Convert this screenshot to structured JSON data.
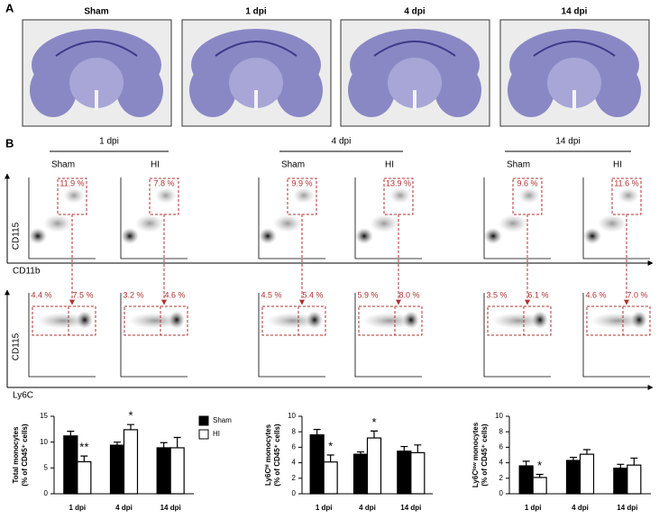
{
  "panel_a": {
    "label": "A",
    "images": [
      "Sham",
      "1 dpi",
      "4 dpi",
      "14 dpi"
    ]
  },
  "panel_b": {
    "label": "B",
    "y_axis_label": "CD115",
    "top_x_axis_label": "CD11b",
    "bottom_x_axis_label": "Ly6C",
    "groups": [
      {
        "title": "1 dpi",
        "plots": [
          {
            "name": "Sham",
            "gate": "11.9 %",
            "left_gate": "4.4 %",
            "right_gate": "7.5 %"
          },
          {
            "name": "HI",
            "gate": "7.8 %",
            "left_gate": "3.2 %",
            "right_gate": "4.6 %"
          }
        ]
      },
      {
        "title": "4 dpi",
        "plots": [
          {
            "name": "Sham",
            "gate": "9.9 %",
            "left_gate": "4.5 %",
            "right_gate": "5.4 %"
          },
          {
            "name": "HI",
            "gate": "13.9 %",
            "left_gate": "5.9 %",
            "right_gate": "8.0 %"
          }
        ]
      },
      {
        "title": "14 dpi",
        "plots": [
          {
            "name": "Sham",
            "gate": "9.6 %",
            "left_gate": "3.5 %",
            "right_gate": "6.1 %"
          },
          {
            "name": "HI",
            "gate": "11.6 %",
            "left_gate": "4.6 %",
            "right_gate": "7.0 %"
          }
        ]
      }
    ]
  },
  "chart_data": [
    {
      "type": "bar",
      "y_label": [
        "Total monocytes",
        "(% of CD45⁺ cells)"
      ],
      "categories": [
        "1 dpi",
        "4 dpi",
        "14 dpi"
      ],
      "series": [
        {
          "name": "Sham",
          "color": "#000000",
          "values": [
            11.2,
            9.4,
            8.9
          ],
          "errors": [
            0.9,
            0.6,
            1.0
          ]
        },
        {
          "name": "HI",
          "color": "#ffffff",
          "values": [
            6.2,
            12.4,
            8.9
          ],
          "errors": [
            1.1,
            1.0,
            2.0
          ]
        }
      ],
      "ylim": [
        0,
        15
      ],
      "yticks": [
        0,
        5,
        10,
        15
      ],
      "legend": "right",
      "annotations": [
        {
          "text": "**",
          "category": "1 dpi"
        },
        {
          "text": "*",
          "category": "4 dpi"
        }
      ]
    },
    {
      "type": "bar",
      "y_label": [
        "Ly6Cʰⁱ monocytes",
        "(% of CD45⁺ cells)"
      ],
      "categories": [
        "1 dpi",
        "4 dpi",
        "14 dpi"
      ],
      "series": [
        {
          "color": "#000000",
          "values": [
            7.6,
            5.1,
            5.5
          ],
          "errors": [
            0.7,
            0.3,
            0.6
          ]
        },
        {
          "color": "#ffffff",
          "values": [
            4.1,
            7.2,
            5.3
          ],
          "errors": [
            0.9,
            0.9,
            1.0
          ]
        }
      ],
      "ylim": [
        0,
        10
      ],
      "yticks": [
        0,
        2,
        4,
        6,
        8,
        10
      ],
      "annotations": [
        {
          "text": "*",
          "category": "1 dpi"
        },
        {
          "text": "*",
          "category": "4 dpi"
        }
      ]
    },
    {
      "type": "bar",
      "y_label": [
        "Ly6Cˡᵒʷ monocytes",
        "(% of CD45⁺ cells)"
      ],
      "categories": [
        "1 dpi",
        "4 dpi",
        "14 dpi"
      ],
      "series": [
        {
          "color": "#000000",
          "values": [
            3.6,
            4.3,
            3.3
          ],
          "errors": [
            0.6,
            0.4,
            0.5
          ]
        },
        {
          "color": "#ffffff",
          "values": [
            2.1,
            5.1,
            3.7
          ],
          "errors": [
            0.4,
            0.6,
            0.9
          ]
        }
      ],
      "ylim": [
        0,
        10
      ],
      "yticks": [
        0,
        2,
        4,
        6,
        8,
        10
      ],
      "annotations": [
        {
          "text": "*",
          "category": "1 dpi"
        }
      ]
    }
  ]
}
